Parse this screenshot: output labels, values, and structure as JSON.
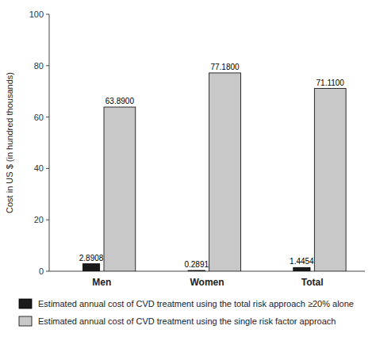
{
  "chart_data": {
    "type": "bar",
    "categories": [
      "Men",
      "Women",
      "Total"
    ],
    "series": [
      {
        "name": "Estimated annual cost of CVD treatment using the total risk approach ≥20% alone",
        "color": "#1a1a1a",
        "values": [
          2.8908,
          0.2891,
          1.4454
        ]
      },
      {
        "name": "Estimated annual cost of CVD treatment using the single risk factor approach",
        "color": "#c8c8c8",
        "values": [
          63.89,
          77.18,
          71.11
        ],
        "value_labels": [
          "63.8900",
          "77.1800",
          "71.1100"
        ]
      }
    ],
    "ylabel": "Cost in US $ (in hundred thousands)",
    "ylim": [
      0,
      100
    ],
    "yticks": [
      0,
      20,
      40,
      60,
      80,
      100
    ],
    "data_labels": true,
    "grid": false,
    "legend": "bottom"
  }
}
